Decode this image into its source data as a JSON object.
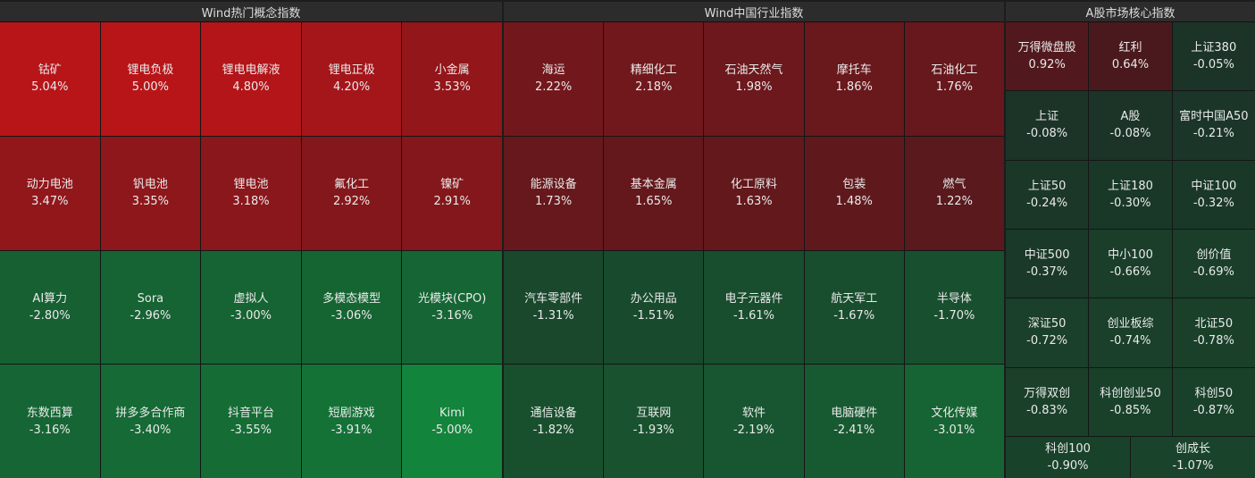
{
  "panels": [
    {
      "title": "Wind热门概念指数",
      "cells": [
        {
          "name": "钴矿",
          "value": "5.04%"
        },
        {
          "name": "锂电负极",
          "value": "5.00%"
        },
        {
          "name": "锂电电解液",
          "value": "4.80%"
        },
        {
          "name": "锂电正极",
          "value": "4.20%"
        },
        {
          "name": "小金属",
          "value": "3.53%"
        },
        {
          "name": "动力电池",
          "value": "3.47%"
        },
        {
          "name": "钒电池",
          "value": "3.35%"
        },
        {
          "name": "锂电池",
          "value": "3.18%"
        },
        {
          "name": "氟化工",
          "value": "2.92%"
        },
        {
          "name": "镍矿",
          "value": "2.91%"
        },
        {
          "name": "AI算力",
          "value": "-2.80%"
        },
        {
          "name": "Sora",
          "value": "-2.96%"
        },
        {
          "name": "虚拟人",
          "value": "-3.00%"
        },
        {
          "name": "多模态模型",
          "value": "-3.06%"
        },
        {
          "name": "光模块(CPO)",
          "value": "-3.16%"
        },
        {
          "name": "东数西算",
          "value": "-3.16%"
        },
        {
          "name": "拼多多合作商",
          "value": "-3.40%"
        },
        {
          "name": "抖音平台",
          "value": "-3.55%"
        },
        {
          "name": "短剧游戏",
          "value": "-3.91%"
        },
        {
          "name": "Kimi",
          "value": "-5.00%"
        }
      ]
    },
    {
      "title": "Wind中国行业指数",
      "cells": [
        {
          "name": "海运",
          "value": "2.22%"
        },
        {
          "name": "精细化工",
          "value": "2.18%"
        },
        {
          "name": "石油天然气",
          "value": "1.98%"
        },
        {
          "name": "摩托车",
          "value": "1.86%"
        },
        {
          "name": "石油化工",
          "value": "1.76%"
        },
        {
          "name": "能源设备",
          "value": "1.73%"
        },
        {
          "name": "基本金属",
          "value": "1.65%"
        },
        {
          "name": "化工原料",
          "value": "1.63%"
        },
        {
          "name": "包装",
          "value": "1.48%"
        },
        {
          "name": "燃气",
          "value": "1.22%"
        },
        {
          "name": "汽车零部件",
          "value": "-1.31%"
        },
        {
          "name": "办公用品",
          "value": "-1.51%"
        },
        {
          "name": "电子元器件",
          "value": "-1.61%"
        },
        {
          "name": "航天军工",
          "value": "-1.67%"
        },
        {
          "name": "半导体",
          "value": "-1.70%"
        },
        {
          "name": "通信设备",
          "value": "-1.82%"
        },
        {
          "name": "互联网",
          "value": "-1.93%"
        },
        {
          "name": "软件",
          "value": "-2.19%"
        },
        {
          "name": "电脑硬件",
          "value": "-2.41%"
        },
        {
          "name": "文化传媒",
          "value": "-3.01%"
        }
      ]
    },
    {
      "title": "A股市场核心指数",
      "cells": [
        {
          "name": "万得微盘股",
          "value": "0.92%"
        },
        {
          "name": "红利",
          "value": "0.64%"
        },
        {
          "name": "上证380",
          "value": "-0.05%"
        },
        {
          "name": "上证",
          "value": "-0.08%"
        },
        {
          "name": "A股",
          "value": "-0.08%"
        },
        {
          "name": "富时中国A50",
          "value": "-0.21%"
        },
        {
          "name": "上证50",
          "value": "-0.24%"
        },
        {
          "name": "上证180",
          "value": "-0.30%"
        },
        {
          "name": "中证100",
          "value": "-0.32%"
        },
        {
          "name": "中证500",
          "value": "-0.37%"
        },
        {
          "name": "中小100",
          "value": "-0.66%"
        },
        {
          "name": "创价值",
          "value": "-0.69%"
        },
        {
          "name": "深证50",
          "value": "-0.72%"
        },
        {
          "name": "创业板综",
          "value": "-0.74%"
        },
        {
          "name": "北证50",
          "value": "-0.78%"
        },
        {
          "name": "万得双创",
          "value": "-0.83%"
        },
        {
          "name": "科创创业50",
          "value": "-0.85%"
        },
        {
          "name": "科创50",
          "value": "-0.87%"
        },
        {
          "name": "科创100",
          "value": "-0.90%"
        },
        {
          "name": "创成长",
          "value": "-1.07%"
        }
      ]
    }
  ]
}
